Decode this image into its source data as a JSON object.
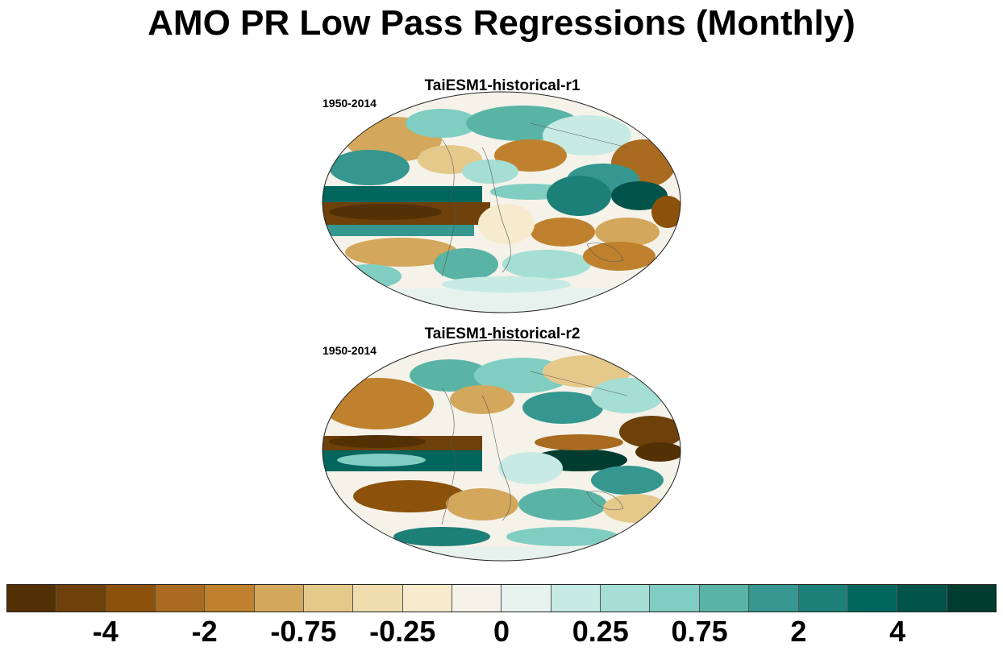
{
  "title": "AMO PR Low Pass Regressions (Monthly)",
  "panels": [
    {
      "title": "TaiESM1-historical-r1",
      "period": "1950-2014"
    },
    {
      "title": "TaiESM1-historical-r2",
      "period": "1950-2014"
    }
  ],
  "colorbar": {
    "colors": [
      "#543005",
      "#6e400a",
      "#8c510a",
      "#a86b20",
      "#bf812d",
      "#d3a75c",
      "#e5c98a",
      "#efddae",
      "#f6ebcc",
      "#f5f2ea",
      "#e7f2ef",
      "#c7eae5",
      "#a5ded4",
      "#80cdc1",
      "#5ab4a6",
      "#35978f",
      "#1d8078",
      "#01665e",
      "#025349",
      "#003c30"
    ],
    "labels": [
      "-4",
      "-2",
      "-0.75",
      "-0.25",
      "0",
      "0.25",
      "0.75",
      "2",
      "4"
    ]
  }
}
